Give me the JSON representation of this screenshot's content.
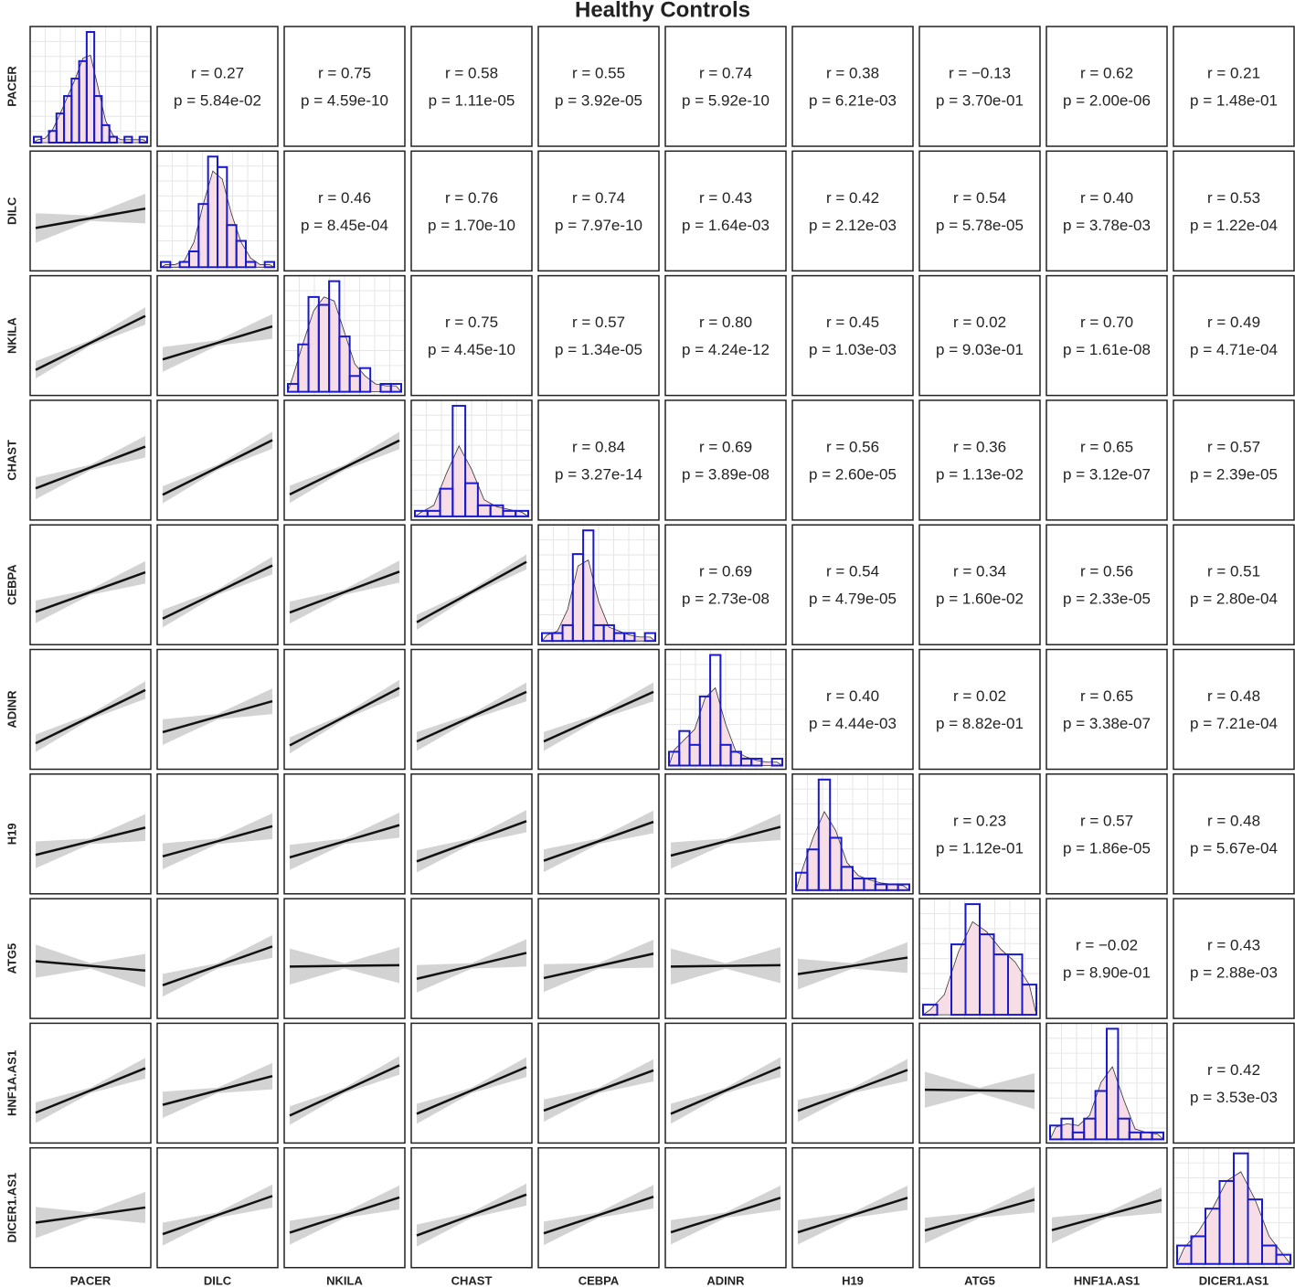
{
  "chart_data": {
    "type": "pairs",
    "title": "Healthy Controls",
    "variables": [
      "PACER",
      "DILC",
      "NKILA",
      "CHAST",
      "CEBPA",
      "ADINR",
      "H19",
      "ATG5",
      "HNF1A.AS1",
      "DICER1.AS1"
    ],
    "bar_color": "#1a1acc",
    "density_fill": "#f6dde6",
    "counts": [
      [
        1,
        0,
        2,
        5,
        8,
        11,
        14,
        19,
        8,
        3,
        1,
        0,
        1,
        0,
        1
      ],
      [
        1,
        0,
        1,
        3,
        12,
        21,
        19,
        8,
        5,
        1,
        0,
        1
      ],
      [
        1,
        6,
        12,
        11,
        14,
        7,
        2,
        3,
        0,
        1,
        1
      ],
      [
        1,
        1,
        5,
        20,
        6,
        2,
        2,
        1,
        1
      ],
      [
        1,
        1,
        2,
        11,
        14,
        2,
        2,
        1,
        1,
        0,
        1
      ],
      [
        2,
        5,
        3,
        10,
        16,
        3,
        2,
        1,
        1,
        0,
        1
      ],
      [
        3,
        7,
        19,
        9,
        4,
        2,
        2,
        1,
        1,
        1
      ],
      [
        1,
        0,
        7,
        11,
        8,
        6,
        6,
        3
      ],
      [
        2,
        3,
        1,
        3,
        7,
        16,
        3,
        1,
        1,
        1
      ],
      [
        2,
        3,
        6,
        9,
        12,
        7,
        2,
        1
      ]
    ],
    "correlations": [
      [
        {
          "r": 0.27,
          "r_label": "r = 0.27",
          "p": 0.0584,
          "p_label": "p = 5.84e-02"
        },
        {
          "r": 0.75,
          "r_label": "r = 0.75",
          "p": 4.59e-10,
          "p_label": "p = 4.59e-10"
        },
        {
          "r": 0.58,
          "r_label": "r = 0.58",
          "p": 1.11e-05,
          "p_label": "p = 1.11e-05"
        },
        {
          "r": 0.55,
          "r_label": "r = 0.55",
          "p": 3.92e-05,
          "p_label": "p = 3.92e-05"
        },
        {
          "r": 0.74,
          "r_label": "r = 0.74",
          "p": 5.92e-10,
          "p_label": "p = 5.92e-10"
        },
        {
          "r": 0.38,
          "r_label": "r = 0.38",
          "p": 0.00621,
          "p_label": "p = 6.21e-03"
        },
        {
          "r": -0.13,
          "r_label": "r = −0.13",
          "p": 0.37,
          "p_label": "p = 3.70e-01"
        },
        {
          "r": 0.62,
          "r_label": "r = 0.62",
          "p": 2e-06,
          "p_label": "p = 2.00e-06"
        },
        {
          "r": 0.21,
          "r_label": "r = 0.21",
          "p": 0.148,
          "p_label": "p = 1.48e-01"
        }
      ],
      [
        {
          "r": 0.46,
          "r_label": "r = 0.46",
          "p": 0.000845,
          "p_label": "p = 8.45e-04"
        },
        {
          "r": 0.76,
          "r_label": "r = 0.76",
          "p": 1.7e-10,
          "p_label": "p = 1.70e-10"
        },
        {
          "r": 0.74,
          "r_label": "r = 0.74",
          "p": 7.97e-10,
          "p_label": "p = 7.97e-10"
        },
        {
          "r": 0.43,
          "r_label": "r = 0.43",
          "p": 0.00164,
          "p_label": "p = 1.64e-03"
        },
        {
          "r": 0.42,
          "r_label": "r = 0.42",
          "p": 0.00212,
          "p_label": "p = 2.12e-03"
        },
        {
          "r": 0.54,
          "r_label": "r = 0.54",
          "p": 5.78e-05,
          "p_label": "p = 5.78e-05"
        },
        {
          "r": 0.4,
          "r_label": "r = 0.40",
          "p": 0.00378,
          "p_label": "p = 3.78e-03"
        },
        {
          "r": 0.53,
          "r_label": "r = 0.53",
          "p": 0.000122,
          "p_label": "p = 1.22e-04"
        }
      ],
      [
        {
          "r": 0.75,
          "r_label": "r = 0.75",
          "p": 4.45e-10,
          "p_label": "p = 4.45e-10"
        },
        {
          "r": 0.57,
          "r_label": "r = 0.57",
          "p": 1.34e-05,
          "p_label": "p = 1.34e-05"
        },
        {
          "r": 0.8,
          "r_label": "r = 0.80",
          "p": 4.24e-12,
          "p_label": "p = 4.24e-12"
        },
        {
          "r": 0.45,
          "r_label": "r = 0.45",
          "p": 0.00103,
          "p_label": "p = 1.03e-03"
        },
        {
          "r": 0.02,
          "r_label": "r = 0.02",
          "p": 0.903,
          "p_label": "p = 9.03e-01"
        },
        {
          "r": 0.7,
          "r_label": "r = 0.70",
          "p": 1.61e-08,
          "p_label": "p = 1.61e-08"
        },
        {
          "r": 0.49,
          "r_label": "r = 0.49",
          "p": 0.000471,
          "p_label": "p = 4.71e-04"
        }
      ],
      [
        {
          "r": 0.84,
          "r_label": "r = 0.84",
          "p": 3.27e-14,
          "p_label": "p = 3.27e-14"
        },
        {
          "r": 0.69,
          "r_label": "r = 0.69",
          "p": 3.89e-08,
          "p_label": "p = 3.89e-08"
        },
        {
          "r": 0.56,
          "r_label": "r = 0.56",
          "p": 2.6e-05,
          "p_label": "p = 2.60e-05"
        },
        {
          "r": 0.36,
          "r_label": "r = 0.36",
          "p": 0.0113,
          "p_label": "p = 1.13e-02"
        },
        {
          "r": 0.65,
          "r_label": "r = 0.65",
          "p": 3.12e-07,
          "p_label": "p = 3.12e-07"
        },
        {
          "r": 0.57,
          "r_label": "r = 0.57",
          "p": 2.39e-05,
          "p_label": "p = 2.39e-05"
        }
      ],
      [
        {
          "r": 0.69,
          "r_label": "r = 0.69",
          "p": 2.73e-08,
          "p_label": "p = 2.73e-08"
        },
        {
          "r": 0.54,
          "r_label": "r = 0.54",
          "p": 4.79e-05,
          "p_label": "p = 4.79e-05"
        },
        {
          "r": 0.34,
          "r_label": "r = 0.34",
          "p": 0.016,
          "p_label": "p = 1.60e-02"
        },
        {
          "r": 0.56,
          "r_label": "r = 0.56",
          "p": 2.33e-05,
          "p_label": "p = 2.33e-05"
        },
        {
          "r": 0.51,
          "r_label": "r = 0.51",
          "p": 0.00028,
          "p_label": "p = 2.80e-04"
        }
      ],
      [
        {
          "r": 0.4,
          "r_label": "r = 0.40",
          "p": 0.00444,
          "p_label": "p = 4.44e-03"
        },
        {
          "r": 0.02,
          "r_label": "r = 0.02",
          "p": 0.882,
          "p_label": "p = 8.82e-01"
        },
        {
          "r": 0.65,
          "r_label": "r = 0.65",
          "p": 3.38e-07,
          "p_label": "p = 3.38e-07"
        },
        {
          "r": 0.48,
          "r_label": "r = 0.48",
          "p": 0.000721,
          "p_label": "p = 7.21e-04"
        }
      ],
      [
        {
          "r": 0.23,
          "r_label": "r = 0.23",
          "p": 0.112,
          "p_label": "p = 1.12e-01"
        },
        {
          "r": 0.57,
          "r_label": "r = 0.57",
          "p": 1.86e-05,
          "p_label": "p = 1.86e-05"
        },
        {
          "r": 0.48,
          "r_label": "r = 0.48",
          "p": 0.000567,
          "p_label": "p = 5.67e-04"
        }
      ],
      [
        {
          "r": -0.02,
          "r_label": "r = −0.02",
          "p": 0.89,
          "p_label": "p = 8.90e-01"
        },
        {
          "r": 0.43,
          "r_label": "r = 0.43",
          "p": 0.00288,
          "p_label": "p = 2.88e-03"
        }
      ],
      [
        {
          "r": 0.42,
          "r_label": "r = 0.42",
          "p": 0.00353,
          "p_label": "p = 3.53e-03"
        }
      ]
    ]
  }
}
